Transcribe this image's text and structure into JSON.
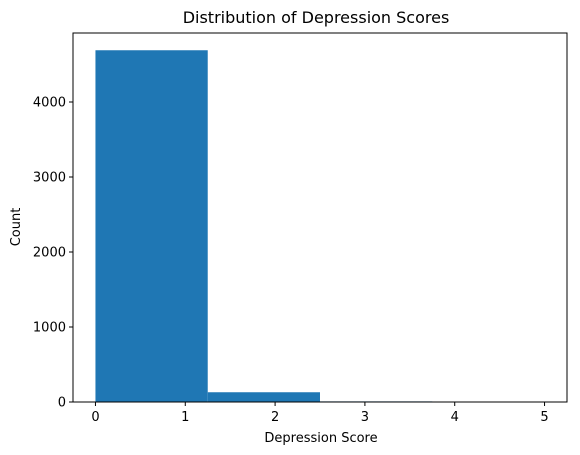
{
  "chart_data": {
    "type": "bar",
    "title": "Distribution of Depression Scores",
    "xlabel": "Depression Score",
    "ylabel": "Count",
    "bins": [
      {
        "x0": 0,
        "x1": 1.25,
        "count": 4690
      },
      {
        "x0": 1.25,
        "x1": 2.5,
        "count": 130
      },
      {
        "x0": 2.5,
        "x1": 3.75,
        "count": 8
      },
      {
        "x0": 3.75,
        "x1": 5,
        "count": 4
      }
    ],
    "xlim": [
      -0.25,
      5.25
    ],
    "ylim": [
      0,
      4920
    ],
    "xticks": [
      0,
      1,
      2,
      3,
      4,
      5
    ],
    "yticks": [
      0,
      1000,
      2000,
      3000,
      4000
    ],
    "bar_color": "#1f77b4",
    "grid": false,
    "legend": "none"
  }
}
